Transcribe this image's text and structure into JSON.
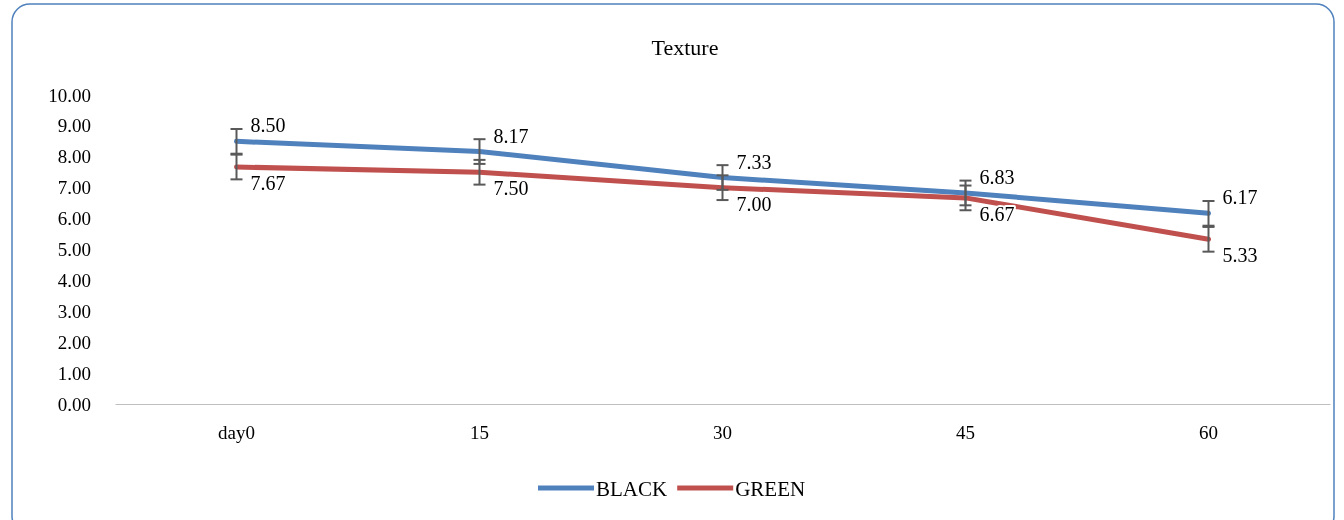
{
  "chart_data": {
    "type": "line",
    "title": "Texture",
    "categories": [
      "day0",
      "15",
      "30",
      "45",
      "60"
    ],
    "series": [
      {
        "name": "BLACK",
        "color": "#4f81bd",
        "values": [
          8.5,
          8.17,
          7.33,
          6.83,
          6.17
        ],
        "value_labels": [
          "8.50",
          "8.17",
          "7.33",
          "6.83",
          "6.17"
        ],
        "errors": [
          0.4,
          0.4,
          0.4,
          0.4,
          0.4
        ]
      },
      {
        "name": "GREEN",
        "color": "#c0504d",
        "values": [
          7.67,
          7.5,
          7.0,
          6.67,
          5.33
        ],
        "value_labels": [
          "7.67",
          "7.50",
          "7.00",
          "6.67",
          "5.33"
        ],
        "errors": [
          0.4,
          0.4,
          0.4,
          0.4,
          0.4
        ]
      }
    ],
    "ylim": [
      0,
      10
    ],
    "yticks": [
      {
        "value": 0,
        "label": "0.00"
      },
      {
        "value": 1,
        "label": "1.00"
      },
      {
        "value": 2,
        "label": "2.00"
      },
      {
        "value": 3,
        "label": "3.00"
      },
      {
        "value": 4,
        "label": "4.00"
      },
      {
        "value": 5,
        "label": "5.00"
      },
      {
        "value": 6,
        "label": "6.00"
      },
      {
        "value": 7,
        "label": "7.00"
      },
      {
        "value": 8,
        "label": "8.00"
      },
      {
        "value": 9,
        "label": "9.00"
      },
      {
        "value": 10,
        "label": "10.00"
      }
    ],
    "grid": false,
    "legend": "bottom",
    "marker": "none",
    "line_style": "solid"
  }
}
